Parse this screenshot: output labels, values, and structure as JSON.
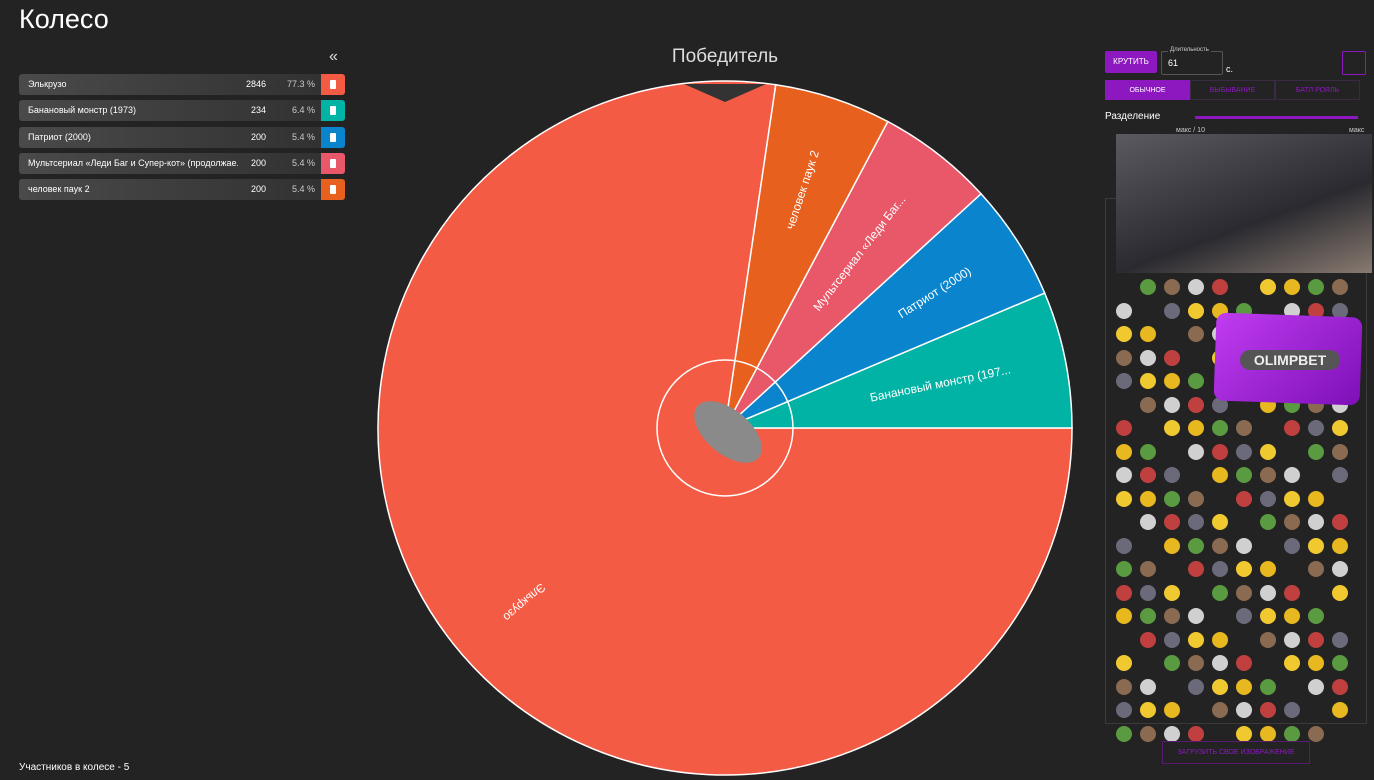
{
  "header": {
    "title": "Колесо",
    "collapse": "«"
  },
  "participants": [
    {
      "name": "Элькрузо",
      "wheel_label": "Элькрузо",
      "amount": 2846,
      "percent": "77.3 %",
      "color": "#f45b44"
    },
    {
      "name": "Банановый монстр (1973)",
      "wheel_label": "Банановый монстр (197...",
      "amount": 234,
      "percent": "6.4 %",
      "color": "#00b3a4"
    },
    {
      "name": "Патриот (2000)",
      "wheel_label": "Патриот (2000)",
      "amount": 200,
      "percent": "5.4 %",
      "color": "#0a84cc"
    },
    {
      "name": "Мультсериал «Леди Баг и Супер-кот» (продолжае...",
      "wheel_label": "Мультсериал «Леди Баг...",
      "amount": 200,
      "percent": "5.4 %",
      "color": "#e85868"
    },
    {
      "name": "человек паук 2",
      "wheel_label": "человек паук 2",
      "amount": 200,
      "percent": "5.4 %",
      "color": "#e8601e"
    }
  ],
  "wheel": {
    "title": "Победитель"
  },
  "controls": {
    "spin": "КРУТИТЬ",
    "duration_label": "Длительность",
    "duration": "61",
    "unit": "с.",
    "modes": [
      "ОБЫЧНОЕ",
      "ВЫБЫВАНИЕ",
      "БАТЛ РОЯЛЬ"
    ],
    "split_label": "Разделение",
    "split_min": "макс / 10",
    "split_max": "макс",
    "upload": "ЗАГРУЗИТЬ СВОЕ ИЗОБРАЖЕНИЕ"
  },
  "ad": {
    "text": "OLIMPBET"
  },
  "footer": {
    "count_text": "Участников в колесе - 5"
  }
}
